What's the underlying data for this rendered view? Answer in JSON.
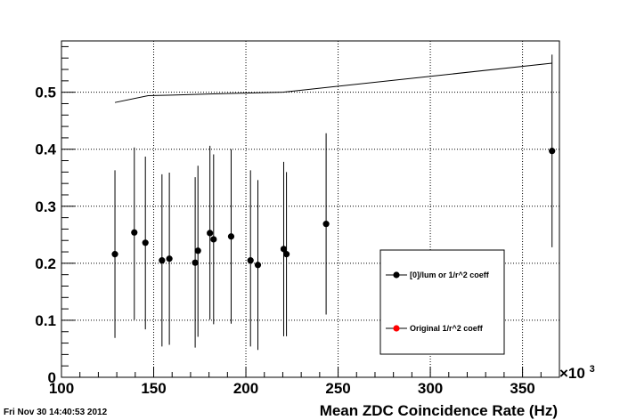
{
  "timestamp": "Fri Nov 30 14:40:53 2012",
  "chart_data": {
    "type": "scatter",
    "title": "",
    "xlabel": "Mean ZDC Coincidence Rate (Hz)",
    "x_multiplier_label": "×10",
    "x_multiplier_exp": "3",
    "ylabel": "",
    "xlim": [
      100,
      370
    ],
    "ylim": [
      0,
      0.59
    ],
    "x_ticks": [
      100,
      150,
      200,
      250,
      300,
      350
    ],
    "x_tick_labels": [
      "100",
      "150",
      "200",
      "250",
      "300",
      "350"
    ],
    "y_ticks": [
      0,
      0.1,
      0.2,
      0.3,
      0.4,
      0.5
    ],
    "y_tick_labels": [
      "0",
      "0.1",
      "0.2",
      "0.3",
      "0.4",
      "0.5"
    ],
    "grid": true,
    "legend_position": "bottom-right",
    "series": [
      {
        "name": "[0]/lum or 1/r^2 coeff",
        "color": "#000000",
        "marker": "circle",
        "points": [
          {
            "x": 129,
            "y": 0.216,
            "lo": 0.069,
            "hi": 0.363
          },
          {
            "x": 139.5,
            "y": 0.254,
            "lo": 0.101,
            "hi": 0.403
          },
          {
            "x": 145.5,
            "y": 0.236,
            "lo": 0.084,
            "hi": 0.387
          },
          {
            "x": 154.5,
            "y": 0.205,
            "lo": 0.054,
            "hi": 0.356
          },
          {
            "x": 158.5,
            "y": 0.208,
            "lo": 0.057,
            "hi": 0.359
          },
          {
            "x": 172.5,
            "y": 0.201,
            "lo": 0.052,
            "hi": 0.351
          },
          {
            "x": 174,
            "y": 0.222,
            "lo": 0.071,
            "hi": 0.371
          },
          {
            "x": 180.5,
            "y": 0.253,
            "lo": 0.101,
            "hi": 0.406
          },
          {
            "x": 182.5,
            "y": 0.242,
            "lo": 0.093,
            "hi": 0.391
          },
          {
            "x": 192,
            "y": 0.247,
            "lo": 0.094,
            "hi": 0.4
          },
          {
            "x": 202.5,
            "y": 0.205,
            "lo": 0.054,
            "hi": 0.363
          },
          {
            "x": 206.5,
            "y": 0.197,
            "lo": 0.048,
            "hi": 0.346
          },
          {
            "x": 220.5,
            "y": 0.225,
            "lo": 0.072,
            "hi": 0.378
          },
          {
            "x": 222,
            "y": 0.216,
            "lo": 0.072,
            "hi": 0.36
          },
          {
            "x": 243.5,
            "y": 0.269,
            "lo": 0.11,
            "hi": 0.428
          },
          {
            "x": 366,
            "y": 0.397,
            "lo": 0.228,
            "hi": 0.566
          }
        ]
      },
      {
        "name": "Original 1/r^2 coeff",
        "color": "#ff0000",
        "marker": "circle",
        "points": []
      },
      {
        "name": "",
        "type": "line",
        "color": "#000000",
        "x": [
          129,
          147,
          160,
          180,
          220,
          366
        ],
        "y": [
          0.482,
          0.494,
          0.495,
          0.497,
          0.5,
          0.551
        ]
      }
    ]
  }
}
